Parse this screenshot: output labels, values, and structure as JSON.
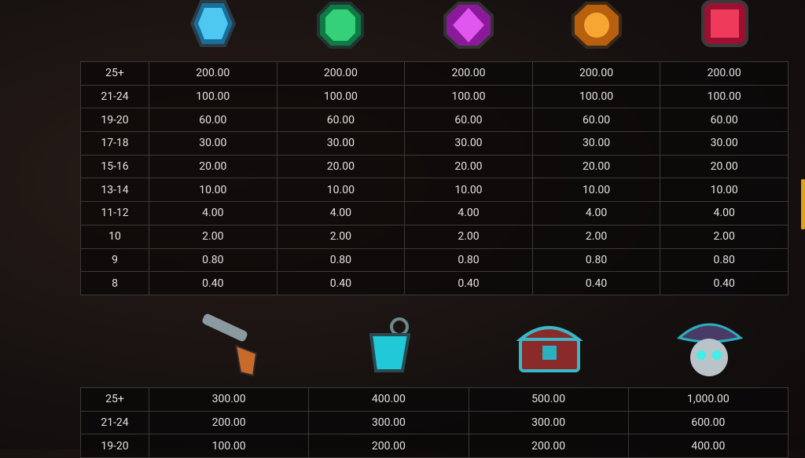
{
  "table1": {
    "rows": [
      [
        "25+",
        "200.00",
        "200.00",
        "200.00",
        "200.00",
        "200.00"
      ],
      [
        "21-24",
        "100.00",
        "100.00",
        "100.00",
        "100.00",
        "100.00"
      ],
      [
        "19-20",
        "60.00",
        "60.00",
        "60.00",
        "60.00",
        "60.00"
      ],
      [
        "17-18",
        "30.00",
        "30.00",
        "30.00",
        "30.00",
        "30.00"
      ],
      [
        "15-16",
        "20.00",
        "20.00",
        "20.00",
        "20.00",
        "20.00"
      ],
      [
        "13-14",
        "10.00",
        "10.00",
        "10.00",
        "10.00",
        "10.00"
      ],
      [
        "11-12",
        "4.00",
        "4.00",
        "4.00",
        "4.00",
        "4.00"
      ],
      [
        "10",
        "2.00",
        "2.00",
        "2.00",
        "2.00",
        "2.00"
      ],
      [
        "9",
        "0.80",
        "0.80",
        "0.80",
        "0.80",
        "0.80"
      ],
      [
        "8",
        "0.40",
        "0.40",
        "0.40",
        "0.40",
        "0.40"
      ]
    ]
  },
  "table2": {
    "rows": [
      [
        "25+",
        "300.00",
        "400.00",
        "500.00",
        "1,000.00"
      ],
      [
        "21-24",
        "200.00",
        "300.00",
        "300.00",
        "600.00"
      ],
      [
        "19-20",
        "100.00",
        "200.00",
        "200.00",
        "400.00"
      ]
    ]
  }
}
